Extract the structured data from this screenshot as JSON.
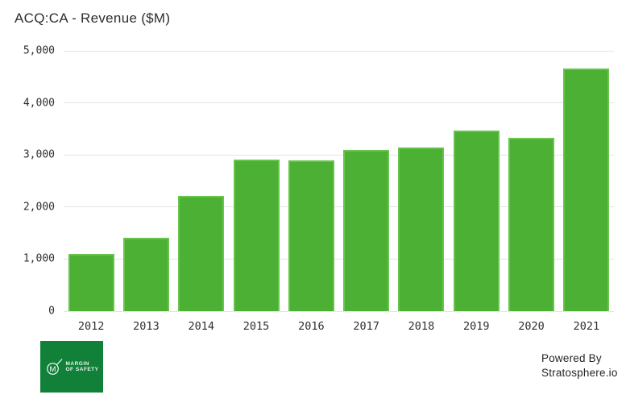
{
  "title": "ACQ:CA - Revenue ($M)",
  "colors": {
    "bar_fill": "#4bb033",
    "bar_border": "#68c44c",
    "grid": "#e4e4e4",
    "logo_bg": "#11813a",
    "title_text": "#2d2d2d",
    "tick_text": "#2f2f2f"
  },
  "chart_data": {
    "type": "bar",
    "title": "ACQ:CA - Revenue ($M)",
    "xlabel": "",
    "ylabel": "",
    "categories": [
      "2012",
      "2013",
      "2014",
      "2015",
      "2016",
      "2017",
      "2018",
      "2019",
      "2020",
      "2021"
    ],
    "values": [
      1100,
      1410,
      2210,
      2905,
      2890,
      3100,
      3150,
      3470,
      3330,
      4655
    ],
    "ylim": [
      0,
      5000
    ],
    "yticks": [
      0,
      1000,
      2000,
      3000,
      4000,
      5000
    ],
    "ytick_labels": [
      "0",
      "1,000",
      "2,000",
      "3,000",
      "4,000",
      "5,000"
    ],
    "grid": true,
    "legend": false
  },
  "footer": {
    "logo_monogram": "M",
    "logo_line1": "Margin",
    "logo_line2": "of Safety",
    "powered_by_line1": "Powered By",
    "powered_by_line2": "Stratosphere.io"
  }
}
